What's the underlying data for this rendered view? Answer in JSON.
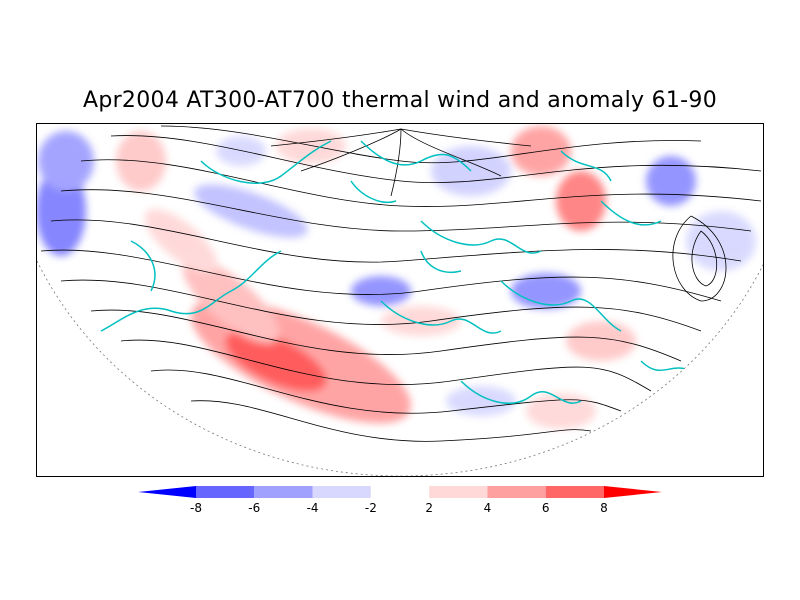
{
  "title": "Apr2004 AT300-AT700 thermal wind and anomaly 61-90",
  "colorbar": {
    "tick_labels": [
      "-8",
      "-6",
      "-4",
      "-2",
      "2",
      "4",
      "6",
      "8"
    ],
    "colors": [
      "#0000ff",
      "#6666ff",
      "#a0a0ff",
      "#d8d8ff",
      "#ffffff",
      "#ffd8d8",
      "#ffa0a0",
      "#ff6666",
      "#ff0000"
    ]
  },
  "chart_data": {
    "type": "heatmap",
    "title": "Apr2004 AT300-AT700 thermal wind and anomaly 61-90",
    "levels": [
      -8,
      -6,
      -4,
      -2,
      2,
      4,
      6,
      8
    ],
    "layers": [
      "anomaly shading",
      "thermal wind streamlines",
      "coastlines and country borders"
    ],
    "projection": "north polar stereographic",
    "colors": {
      "coastline": "#00c0c0",
      "streamline": "#000000",
      "positive_anomaly": "#ff0000",
      "negative_anomaly": "#0000ff"
    }
  }
}
